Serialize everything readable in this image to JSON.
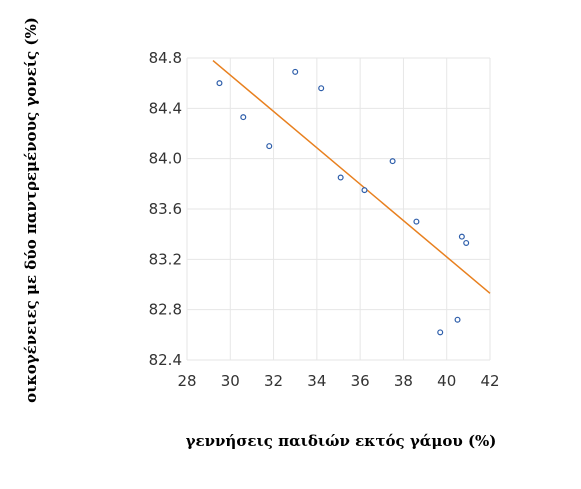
{
  "chart_data": {
    "type": "scatter",
    "xlabel": "γεννήσεις παιδιών εκτός γάμου (%)",
    "ylabel": "οικογένειες με δύο παντρεμένους γονείς (%)",
    "xlim": [
      28,
      42
    ],
    "ylim": [
      82.4,
      84.8
    ],
    "xticks": [
      "28",
      "30",
      "32",
      "34",
      "36",
      "38",
      "40",
      "42"
    ],
    "yticks": [
      "82.4",
      "82.8",
      "83.2",
      "83.6",
      "84.0",
      "84.4",
      "84.8"
    ],
    "grid": true,
    "points": [
      {
        "x": 29.5,
        "y": 84.6
      },
      {
        "x": 30.6,
        "y": 84.33
      },
      {
        "x": 31.8,
        "y": 84.1
      },
      {
        "x": 33.0,
        "y": 84.69
      },
      {
        "x": 34.2,
        "y": 84.56
      },
      {
        "x": 35.1,
        "y": 83.85
      },
      {
        "x": 36.2,
        "y": 83.75
      },
      {
        "x": 37.5,
        "y": 83.98
      },
      {
        "x": 38.6,
        "y": 83.5
      },
      {
        "x": 39.7,
        "y": 82.62
      },
      {
        "x": 40.5,
        "y": 82.72
      },
      {
        "x": 40.7,
        "y": 83.38
      },
      {
        "x": 40.9,
        "y": 83.33
      }
    ],
    "trendline": {
      "x": [
        29.2,
        42.0
      ],
      "y": [
        84.78,
        82.93
      ]
    },
    "colors": {
      "points": "#2E5EAA",
      "trendline": "#E8801F",
      "grid": "#E6E6E6"
    }
  }
}
